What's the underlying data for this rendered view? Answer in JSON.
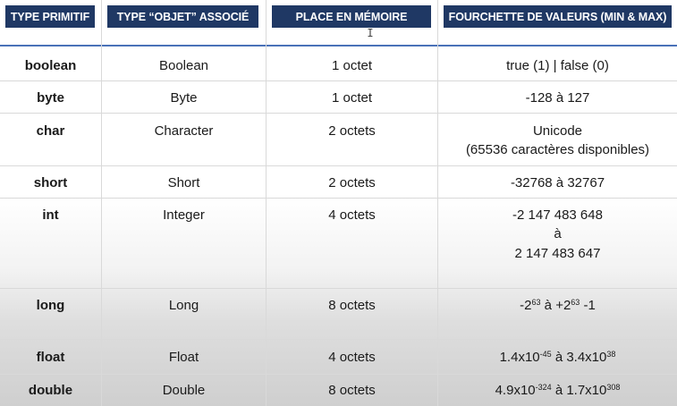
{
  "headers": {
    "col1": "TYPE PRIMITIF",
    "col2": "TYPE “OBJET” ASSOCIÉ",
    "col3": "PLACE EN MÉMOIRE",
    "col4": "FOURCHETTE DE VALEURS (MIN & MAX)"
  },
  "rows": [
    {
      "primitive": "boolean",
      "wrapper": "Boolean",
      "memory": "1 octet",
      "range": "true (1) | false (0)"
    },
    {
      "primitive": "byte",
      "wrapper": "Byte",
      "memory": "1 octet",
      "range": "-128 à 127"
    },
    {
      "primitive": "char",
      "wrapper": "Character",
      "memory": "2 octets",
      "range_line1": "Unicode",
      "range_line2": "(65536 caractères disponibles)"
    },
    {
      "primitive": "short",
      "wrapper": "Short",
      "memory": "2 octets",
      "range": "-32768 à 32767"
    },
    {
      "primitive": "int",
      "wrapper": "Integer",
      "memory": "4 octets",
      "range_line1": "-2 147 483 648",
      "range_line2": "à",
      "range_line3": "2 147 483 647"
    },
    {
      "primitive": "long",
      "wrapper": "Long",
      "memory": "8 octets",
      "range_base1": "-2",
      "range_exp1": "63",
      "range_mid": " à +2",
      "range_exp2": "63",
      "range_end": " -1"
    },
    {
      "primitive": "float",
      "wrapper": "Float",
      "memory": "4 octets",
      "range_base1": "1.4x10",
      "range_exp1": "-45",
      "range_mid": " à 3.4x10",
      "range_exp2": "38"
    },
    {
      "primitive": "double",
      "wrapper": "Double",
      "memory": "8 octets",
      "range_base1": "4.9x10",
      "range_exp1": "-324",
      "range_mid": " à 1.7x10",
      "range_exp2": "308"
    }
  ],
  "cursor": "I"
}
